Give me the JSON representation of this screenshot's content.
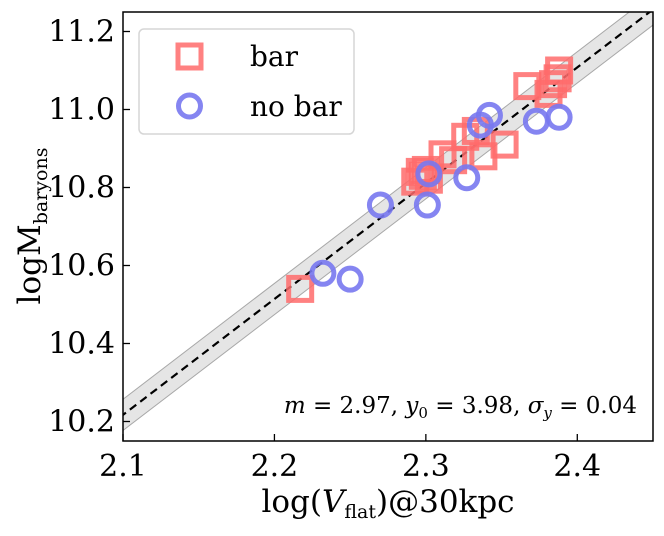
{
  "chart_data": {
    "type": "scatter",
    "xlabel": "log(V_flat)@30kpc",
    "xlabel_parts": {
      "pre": "log(",
      "var": "V",
      "sub": "flat",
      "post": ")@30kpc"
    },
    "ylabel": "logM_baryons",
    "ylabel_parts": {
      "main": "logM",
      "sub": "baryons"
    },
    "xlim": [
      2.1,
      2.45
    ],
    "ylim": [
      10.15,
      11.25
    ],
    "xticks": [
      2.1,
      2.2,
      2.3,
      2.4
    ],
    "xtick_labels": [
      "2.1",
      "2.2",
      "2.3",
      "2.4"
    ],
    "yticks": [
      10.2,
      10.4,
      10.6,
      10.8,
      11.0,
      11.2
    ],
    "ytick_labels": [
      "10.2",
      "10.4",
      "10.6",
      "10.8",
      "11.0",
      "11.2"
    ],
    "fit": {
      "m": 2.97,
      "y0": 3.98,
      "sigma_y": 0.04
    },
    "annotation": {
      "m_sym": "m",
      "m_val": "2.97",
      "y0_sym": "y",
      "y0_sub": "0",
      "y0_val": "3.98",
      "sig_sym": "σ",
      "sig_sub": "y",
      "sig_val": "0.04",
      "eq": " = ",
      "sep": ", "
    },
    "legend_position": "top-left",
    "series": [
      {
        "name": "bar",
        "marker": "square",
        "color": "#ff6b6b",
        "points": [
          [
            2.217,
            10.54
          ],
          [
            2.293,
            10.815
          ],
          [
            2.296,
            10.84
          ],
          [
            2.298,
            10.83
          ],
          [
            2.3,
            10.845
          ],
          [
            2.302,
            10.82
          ],
          [
            2.311,
            10.885
          ],
          [
            2.318,
            10.87
          ],
          [
            2.326,
            10.93
          ],
          [
            2.333,
            10.945
          ],
          [
            2.338,
            10.88
          ],
          [
            2.352,
            10.91
          ],
          [
            2.367,
            11.06
          ],
          [
            2.381,
            11.04
          ],
          [
            2.384,
            11.065
          ],
          [
            2.387,
            11.08
          ],
          [
            2.388,
            11.1
          ]
        ]
      },
      {
        "name": "no bar",
        "marker": "circle",
        "color": "#7878f0",
        "points": [
          [
            2.232,
            10.58
          ],
          [
            2.25,
            10.565
          ],
          [
            2.27,
            10.755
          ],
          [
            2.301,
            10.755
          ],
          [
            2.302,
            10.835
          ],
          [
            2.327,
            10.825
          ],
          [
            2.336,
            10.96
          ],
          [
            2.342,
            10.985
          ],
          [
            2.373,
            10.97
          ],
          [
            2.388,
            10.98
          ]
        ]
      }
    ]
  }
}
